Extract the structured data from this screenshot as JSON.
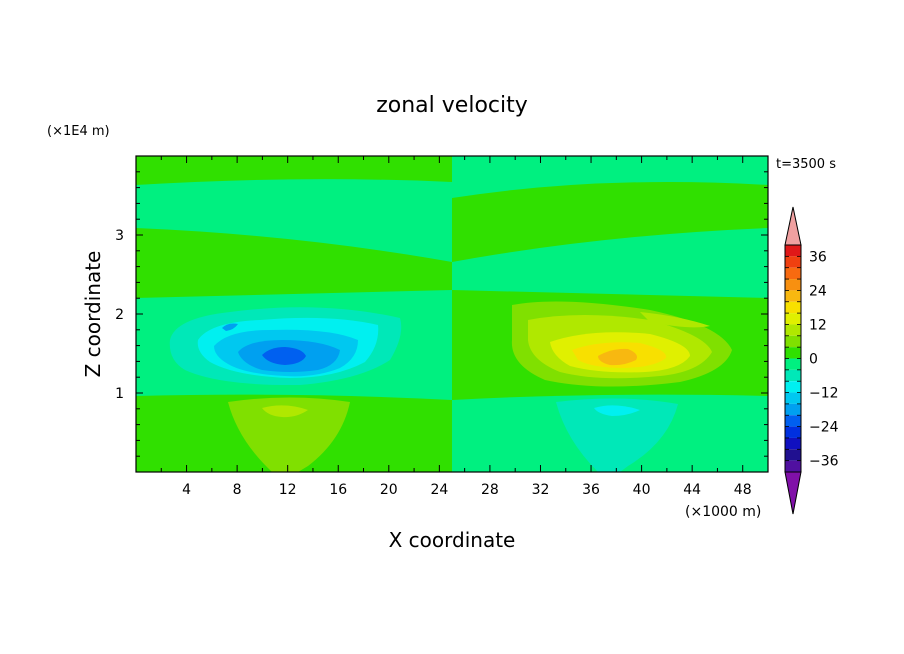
{
  "chart_data": {
    "type": "heatmap",
    "title": "zonal velocity",
    "xlabel": "X coordinate",
    "ylabel": "Z coordinate",
    "x_unit": "(×1000 m)",
    "y_unit": "(×1E4 m)",
    "time_label": "t=3500 s",
    "xlim": [
      0,
      50
    ],
    "ylim": [
      0,
      4
    ],
    "x_ticks": [
      4,
      8,
      12,
      16,
      20,
      24,
      28,
      32,
      36,
      40,
      44,
      48
    ],
    "y_ticks": [
      1,
      2,
      3
    ],
    "colorbar": {
      "ticks": [
        "36",
        "24",
        "12",
        "0",
        "−12",
        "−24",
        "−36"
      ],
      "levels": [
        {
          "value": 42,
          "color": "#f0a0a0"
        },
        {
          "value": 36,
          "color": "#e01818"
        },
        {
          "value": 32,
          "color": "#f04010"
        },
        {
          "value": 28,
          "color": "#f86a10"
        },
        {
          "value": 24,
          "color": "#f89010"
        },
        {
          "value": 20,
          "color": "#f8b810"
        },
        {
          "value": 16,
          "color": "#f8e000"
        },
        {
          "value": 12,
          "color": "#e0f000"
        },
        {
          "value": 8,
          "color": "#b0e800"
        },
        {
          "value": 4,
          "color": "#80e000"
        },
        {
          "value": 0,
          "color": "#30e000"
        },
        {
          "value": -4,
          "color": "#00f080"
        },
        {
          "value": -8,
          "color": "#00e8b8"
        },
        {
          "value": -12,
          "color": "#00f0f0"
        },
        {
          "value": -16,
          "color": "#00c8f0"
        },
        {
          "value": -20,
          "color": "#00a0f0"
        },
        {
          "value": -24,
          "color": "#0060f0"
        },
        {
          "value": -28,
          "color": "#0030e0"
        },
        {
          "value": -32,
          "color": "#1010c0"
        },
        {
          "value": -36,
          "color": "#201090"
        },
        {
          "value": -40,
          "color": "#5010a0"
        },
        {
          "value": -44,
          "color": "#8010a8"
        }
      ]
    },
    "fields": {
      "background": {
        "value": 0,
        "color": "#30e000"
      },
      "band_light": {
        "value": -4,
        "color": "#00f080"
      },
      "left_jet_core_min": -26,
      "right_jet_core_max": 22,
      "left_surface_max": 10,
      "right_surface_min": -12
    }
  }
}
